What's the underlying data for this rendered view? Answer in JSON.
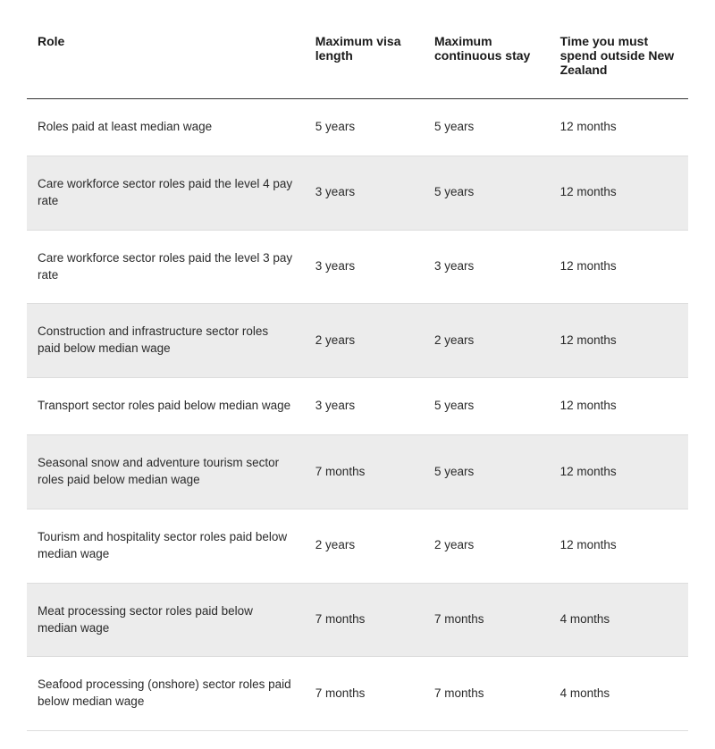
{
  "table": {
    "columns": [
      {
        "key": "role",
        "label": "Role"
      },
      {
        "key": "visa",
        "label": "Maximum visa length"
      },
      {
        "key": "stay",
        "label": "Maximum continuous stay"
      },
      {
        "key": "time",
        "label": "Time you must spend outside New Zealand"
      }
    ],
    "rows": [
      {
        "role": "Roles paid at least median wage",
        "visa": "5 years",
        "stay": "5 years",
        "time": "12 months"
      },
      {
        "role": "Care workforce sector roles paid the level 4 pay rate",
        "visa": "3 years",
        "stay": "5 years",
        "time": "12 months"
      },
      {
        "role": "Care workforce sector roles paid the level 3 pay rate",
        "visa": "3 years",
        "stay": "3 years",
        "time": "12 months"
      },
      {
        "role": "Construction and infrastructure sector roles paid below median wage",
        "visa": "2 years",
        "stay": "2 years",
        "time": "12 months"
      },
      {
        "role": "Transport sector roles paid below median wage",
        "visa": "3 years",
        "stay": "5 years",
        "time": "12 months"
      },
      {
        "role": "Seasonal snow and adventure tourism sector roles paid below median wage",
        "visa": "7 months",
        "stay": "5 years",
        "time": "12 months"
      },
      {
        "role": "Tourism and hospitality sector roles paid below median wage",
        "visa": "2 years",
        "stay": "2 years",
        "time": "12 months"
      },
      {
        "role": "Meat processing sector roles paid below median wage",
        "visa": "7 months",
        "stay": "7 months",
        "time": "4 months"
      },
      {
        "role": "Seafood processing (onshore) sector roles paid below median wage",
        "visa": "7 months",
        "stay": "7 months",
        "time": "4 months"
      }
    ],
    "colors": {
      "background": "#ffffff",
      "alt_row": "#ececec",
      "header_border": "#333333",
      "row_border": "#dddddd",
      "text": "#1a1a1a"
    },
    "font_sizes": {
      "header": 14,
      "body": 13.5
    }
  }
}
